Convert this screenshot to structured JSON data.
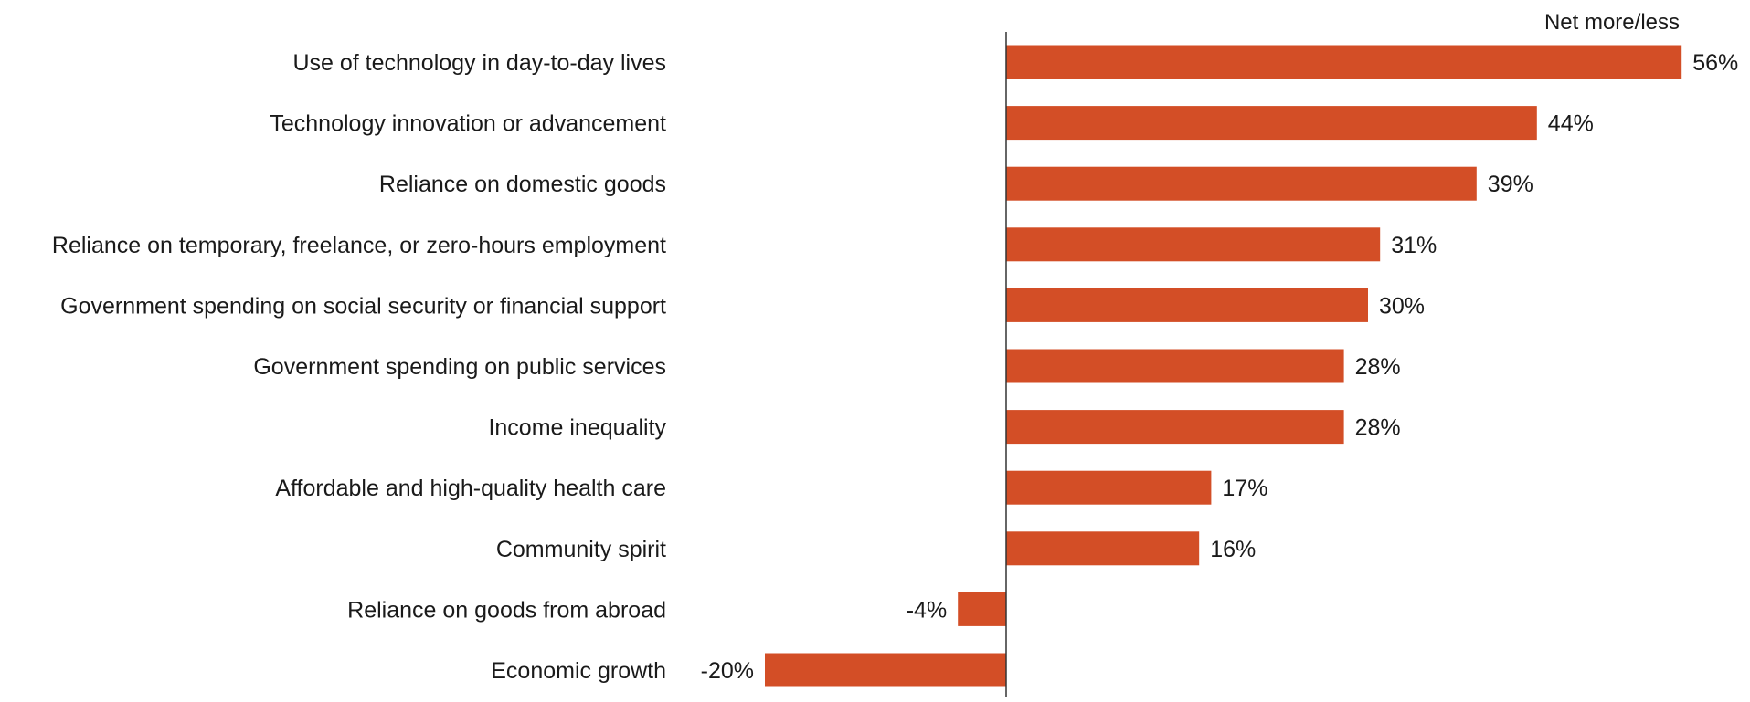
{
  "chart_data": {
    "type": "bar",
    "orientation": "horizontal",
    "header": "Net more/less",
    "categories": [
      "Use of technology in day-to-day lives",
      "Technology innovation or advancement",
      "Reliance on domestic goods",
      "Reliance on temporary, freelance, or zero-hours employment",
      "Government spending on social security or financial support",
      "Government spending on public services",
      "Income inequality",
      "Affordable and high-quality health care",
      "Community spirit",
      "Reliance on goods from abroad",
      "Economic growth"
    ],
    "values": [
      56,
      44,
      39,
      31,
      30,
      28,
      28,
      17,
      16,
      -4,
      -20
    ],
    "value_labels": [
      "56%",
      "44%",
      "39%",
      "31%",
      "30%",
      "28%",
      "28%",
      "17%",
      "16%",
      "-4%",
      "-20%"
    ],
    "unit": "%",
    "xlim": [
      -28,
      60
    ],
    "grid": false,
    "legend": "none",
    "bar_color": "#d34e26",
    "axis_color": "#333333"
  }
}
